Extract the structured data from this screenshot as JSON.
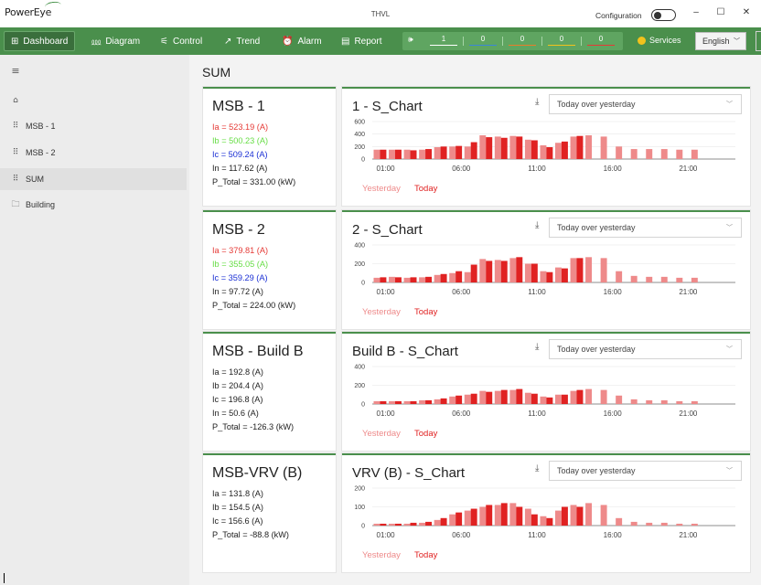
{
  "app": {
    "logo_text": "PowerEye",
    "window_title": "THVL",
    "config_label": "Configuration",
    "minimize": "–",
    "maximize": "☐",
    "close": "✕"
  },
  "toolbar": {
    "nav": [
      {
        "label": "Dashboard",
        "icon": "dashboard-icon",
        "glyph": "⊞",
        "active": true
      },
      {
        "label": "Diagram",
        "icon": "diagram-icon",
        "glyph": "⅏",
        "active": false
      },
      {
        "label": "Control",
        "icon": "control-icon",
        "glyph": "⚟",
        "active": false
      },
      {
        "label": "Trend",
        "icon": "trend-icon",
        "glyph": "↗",
        "active": false
      },
      {
        "label": "Alarm",
        "icon": "alarm-icon",
        "glyph": "⏰",
        "active": false
      },
      {
        "label": "Report",
        "icon": "report-icon",
        "glyph": "▤",
        "active": false
      }
    ],
    "meters": [
      {
        "value": "1",
        "color": "#ffffff"
      },
      {
        "value": "0",
        "color": "#3b86d8"
      },
      {
        "value": "0",
        "color": "#e87d2a"
      },
      {
        "value": "0",
        "color": "#f2c21c"
      },
      {
        "value": "0",
        "color": "#e53935"
      }
    ],
    "services_label": "Services",
    "language": "English"
  },
  "sidebar": {
    "menu_icon": "hamburger-icon",
    "items": [
      {
        "label": "",
        "icon": "home-icon",
        "glyph": "⌂"
      },
      {
        "label": "MSB - 1",
        "icon": "grid-icon",
        "glyph": "⠿"
      },
      {
        "label": "MSB - 2",
        "icon": "grid-icon",
        "glyph": "⠿"
      },
      {
        "label": "SUM",
        "icon": "grid-icon",
        "glyph": "⠿",
        "selected": true
      },
      {
        "label": "Building",
        "icon": "folder-icon",
        "glyph": "🗀"
      }
    ]
  },
  "page_title": "SUM",
  "colors": {
    "accent": "#4a8f4c",
    "ia": "#e53935",
    "ib": "#66dd44",
    "ic": "#1a2fd4",
    "bar_yesterday": "#ee8a8a",
    "bar_today": "#e02222"
  },
  "meters_cards": [
    {
      "title": "MSB - 1",
      "lines": [
        {
          "text": "Ia = 523.19 (A)",
          "color": "#e53935"
        },
        {
          "text": "Ib = 500.23 (A)",
          "color": "#66dd44"
        },
        {
          "text": "Ic = 509.24 (A)",
          "color": "#1a2fd4"
        },
        {
          "text": "In = 117.62 (A)",
          "color": "#222222"
        },
        {
          "text": "P_Total = 331.00 (kW)",
          "color": "#222222"
        }
      ]
    },
    {
      "title": "MSB - 2",
      "lines": [
        {
          "text": "Ia = 379.81 (A)",
          "color": "#e53935"
        },
        {
          "text": "Ib = 355.05 (A)",
          "color": "#66dd44"
        },
        {
          "text": "Ic = 359.29 (A)",
          "color": "#1a2fd4"
        },
        {
          "text": "In = 97.72 (A)",
          "color": "#222222"
        },
        {
          "text": "P_Total = 224.00 (kW)",
          "color": "#222222"
        }
      ]
    },
    {
      "title": "MSB - Build B",
      "lines": [
        {
          "text": "Ia = 192.8 (A)",
          "color": "#222222"
        },
        {
          "text": "Ib = 204.4 (A)",
          "color": "#222222"
        },
        {
          "text": "Ic = 196.8 (A)",
          "color": "#222222"
        },
        {
          "text": "In = 50.6 (A)",
          "color": "#222222"
        },
        {
          "text": "P_Total = -126.3 (kW)",
          "color": "#222222"
        }
      ]
    },
    {
      "title": "MSB-VRV (B)",
      "lines": [
        {
          "text": "Ia = 131.8 (A)",
          "color": "#222222"
        },
        {
          "text": "Ib = 154.5 (A)",
          "color": "#222222"
        },
        {
          "text": "Ic = 156.6 (A)",
          "color": "#222222"
        },
        {
          "text": "P_Total = -88.8 (kW)",
          "color": "#222222"
        }
      ]
    }
  ],
  "chart_cards": [
    {
      "title": "1 - S_Chart",
      "range_option": "Today over yesterday"
    },
    {
      "title": "2 - S_Chart",
      "range_option": "Today over yesterday"
    },
    {
      "title": "Build B - S_Chart",
      "range_option": "Today over yesterday"
    },
    {
      "title": "VRV (B) - S_Chart",
      "range_option": "Today over yesterday"
    }
  ],
  "chart_data": [
    {
      "type": "bar",
      "title": "1 - S_Chart",
      "x_tick_labels": [
        "01:00",
        "06:00",
        "11:00",
        "16:00",
        "21:00"
      ],
      "y_ticks": [
        0,
        200,
        400,
        600
      ],
      "ylim": [
        0,
        600
      ],
      "series": [
        {
          "name": "Yesterday",
          "values": [
            150,
            150,
            150,
            150,
            190,
            200,
            200,
            380,
            360,
            370,
            310,
            220,
            260,
            360,
            380,
            360,
            200,
            160,
            160,
            160,
            150,
            150
          ]
        },
        {
          "name": "Today",
          "values": [
            150,
            150,
            140,
            160,
            200,
            210,
            270,
            350,
            340,
            360,
            300,
            190,
            280,
            370
          ]
        }
      ]
    },
    {
      "type": "bar",
      "title": "2 - S_Chart",
      "x_tick_labels": [
        "01:00",
        "06:00",
        "11:00",
        "16:00",
        "21:00"
      ],
      "y_ticks": [
        0,
        200,
        400
      ],
      "ylim": [
        0,
        400
      ],
      "series": [
        {
          "name": "Yesterday",
          "values": [
            50,
            60,
            50,
            55,
            80,
            100,
            110,
            250,
            240,
            260,
            200,
            120,
            160,
            260,
            270,
            260,
            120,
            70,
            60,
            60,
            50,
            50
          ]
        },
        {
          "name": "Today",
          "values": [
            55,
            55,
            55,
            60,
            90,
            120,
            190,
            230,
            230,
            270,
            200,
            110,
            150,
            260
          ]
        }
      ]
    },
    {
      "type": "bar",
      "title": "Build B - S_Chart",
      "x_tick_labels": [
        "01:00",
        "06:00",
        "11:00",
        "16:00",
        "21:00"
      ],
      "y_ticks": [
        0,
        200,
        400
      ],
      "ylim": [
        0,
        400
      ],
      "series": [
        {
          "name": "Yesterday",
          "values": [
            30,
            30,
            30,
            40,
            50,
            80,
            100,
            140,
            140,
            150,
            120,
            80,
            100,
            140,
            160,
            150,
            90,
            50,
            40,
            40,
            30,
            30
          ]
        },
        {
          "name": "Today",
          "values": [
            30,
            30,
            30,
            40,
            60,
            90,
            110,
            130,
            150,
            160,
            110,
            70,
            100,
            150
          ]
        }
      ]
    },
    {
      "type": "bar",
      "title": "VRV (B) - S_Chart",
      "x_tick_labels": [
        "01:00",
        "06:00",
        "11:00",
        "16:00",
        "21:00"
      ],
      "y_ticks": [
        0,
        100,
        200
      ],
      "ylim": [
        0,
        200
      ],
      "series": [
        {
          "name": "Yesterday",
          "values": [
            10,
            10,
            10,
            15,
            30,
            60,
            80,
            100,
            110,
            120,
            90,
            50,
            80,
            110,
            120,
            110,
            40,
            20,
            15,
            15,
            10,
            10
          ]
        },
        {
          "name": "Today",
          "values": [
            10,
            10,
            15,
            20,
            40,
            70,
            90,
            110,
            120,
            100,
            60,
            40,
            100,
            100
          ]
        }
      ]
    }
  ]
}
